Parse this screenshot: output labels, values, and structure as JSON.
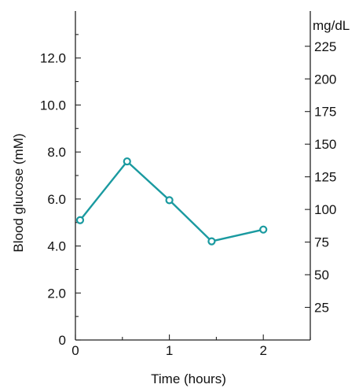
{
  "chart_data": {
    "type": "line",
    "xlabel": "Time (hours)",
    "ylabel": "Blood glucose (mM)",
    "y2_unit_label": "mg/dL",
    "xlim": [
      0,
      2.5
    ],
    "ylim": [
      0,
      14
    ],
    "x_ticks": [
      {
        "value": 0,
        "label": "0"
      },
      {
        "value": 1,
        "label": "1"
      },
      {
        "value": 2,
        "label": "2"
      }
    ],
    "x_minor_ticks": [
      0.5,
      1.5,
      2.5
    ],
    "y_ticks": [
      {
        "value": 0,
        "label": "0"
      },
      {
        "value": 2,
        "label": "2.0"
      },
      {
        "value": 4,
        "label": "4.0"
      },
      {
        "value": 6,
        "label": "6.0"
      },
      {
        "value": 8,
        "label": "8.0"
      },
      {
        "value": 10,
        "label": "10.0"
      },
      {
        "value": 12,
        "label": "12.0"
      }
    ],
    "y_minor_ticks": [
      1,
      3,
      5,
      7,
      9,
      11,
      13
    ],
    "y2_ticks": [
      {
        "value": 25,
        "label": "25"
      },
      {
        "value": 50,
        "label": "50"
      },
      {
        "value": 75,
        "label": "75"
      },
      {
        "value": 100,
        "label": "100"
      },
      {
        "value": 125,
        "label": "125"
      },
      {
        "value": 150,
        "label": "150"
      },
      {
        "value": 175,
        "label": "175"
      },
      {
        "value": 200,
        "label": "200"
      },
      {
        "value": 225,
        "label": "225"
      }
    ],
    "y2_mg_per_mM": 18,
    "series": [
      {
        "color": "#1a9aa0",
        "x": [
          0.05,
          0.55,
          1.0,
          1.45,
          2.0
        ],
        "y": [
          5.1,
          7.6,
          5.95,
          4.2,
          4.7
        ]
      }
    ],
    "grid": false,
    "legend": "none"
  }
}
